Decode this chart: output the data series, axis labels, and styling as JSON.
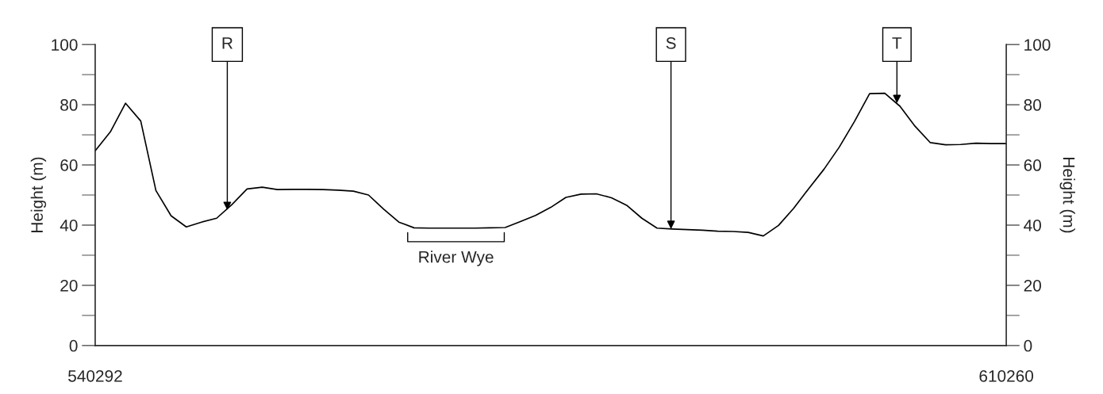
{
  "chart_data": {
    "type": "line",
    "ylabel": "Height (m)",
    "y2label": "Height (m)",
    "categories": [
      "540292",
      null,
      null,
      null,
      null,
      null,
      null,
      null,
      null,
      null,
      null,
      null,
      null,
      null,
      null,
      null,
      null,
      null,
      null,
      null,
      null,
      null,
      null,
      null,
      null,
      null,
      null,
      null,
      null,
      null,
      null,
      null,
      null,
      null,
      null,
      null,
      null,
      null,
      null,
      null,
      null,
      null,
      null,
      null,
      null,
      null,
      null,
      null,
      null,
      null,
      null,
      null,
      null,
      null,
      null,
      null,
      null,
      null,
      null,
      null,
      "610260"
    ],
    "series": [
      {
        "color": "#000000",
        "values": [
          64.7,
          71,
          80.5,
          74.6,
          51.5,
          43.1,
          39.4,
          41.0,
          42.3,
          46.8,
          52,
          52.6,
          51.8,
          51.9,
          51.9,
          51.8,
          51.6,
          51.3,
          50,
          45.3,
          41,
          39.1,
          39,
          39,
          39,
          39,
          39.1,
          39.2,
          41.2,
          43.2,
          45.9,
          49.2,
          50.3,
          50.4,
          49.1,
          46.6,
          42.3,
          39,
          38.7,
          38.5,
          38.3,
          38,
          37.9,
          37.6,
          36.4,
          39.9,
          45.6,
          52.2,
          58.6,
          65.9,
          74.4,
          83.7,
          83.8,
          79.5,
          72.8,
          67.4,
          66.7,
          66.8,
          67.2,
          67.1,
          67.1
        ]
      }
    ],
    "ylim": [
      0,
      100
    ],
    "yticks": [
      0,
      20,
      40,
      60,
      80,
      100
    ],
    "y2lim": [
      0,
      100
    ],
    "y2ticks": [
      0,
      20,
      40,
      60,
      80,
      100
    ],
    "annotations": [
      {
        "text": "R",
        "y": 45
      },
      {
        "text": "S",
        "y": 38.7
      },
      {
        "text": "T",
        "y": 80.5
      },
      {
        "text": "River Wye",
        "y": 39
      }
    ],
    "grid": false,
    "legend": false,
    "marker": "none",
    "line_style": "solid"
  }
}
